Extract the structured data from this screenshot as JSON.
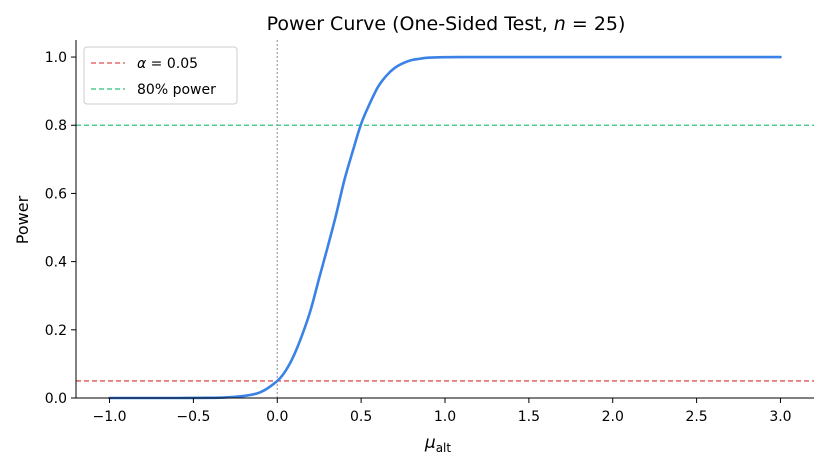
{
  "chart_data": {
    "type": "line",
    "title_prefix": "Power Curve (One-Sided Test, ",
    "title_var": "n",
    "title_suffix": " = 25)",
    "xlabel_main": "μ",
    "xlabel_sub": "alt",
    "ylabel": "Power",
    "xlim": [
      -1.2,
      3.2
    ],
    "ylim": [
      0.0,
      1.05
    ],
    "xticks": [
      -1.0,
      -0.5,
      0.0,
      0.5,
      1.0,
      1.5,
      2.0,
      2.5,
      3.0
    ],
    "xtick_labels": [
      "−1.0",
      "−0.5",
      "0.0",
      "0.5",
      "1.0",
      "1.5",
      "2.0",
      "2.5",
      "3.0"
    ],
    "yticks": [
      0.0,
      0.2,
      0.4,
      0.6,
      0.8,
      1.0
    ],
    "ytick_labels": [
      "0.0",
      "0.2",
      "0.4",
      "0.6",
      "0.8",
      "1.0"
    ],
    "grid": false,
    "legend_position": "top-left",
    "series": [
      {
        "color": "#3b82e6",
        "x": [
          -1.0,
          -0.8,
          -0.6,
          -0.4,
          -0.3,
          -0.2,
          -0.1,
          0.0,
          0.05,
          0.1,
          0.15,
          0.2,
          0.25,
          0.3,
          0.35,
          0.4,
          0.45,
          0.5,
          0.55,
          0.6,
          0.65,
          0.7,
          0.75,
          0.8,
          0.85,
          0.9,
          1.0,
          1.1,
          1.2,
          1.5,
          2.0,
          2.5,
          3.0
        ],
        "y": [
          0.0,
          0.0,
          0.0,
          0.0004,
          0.002,
          0.006,
          0.017,
          0.05,
          0.08,
          0.126,
          0.187,
          0.26,
          0.352,
          0.442,
          0.536,
          0.639,
          0.724,
          0.804,
          0.862,
          0.912,
          0.945,
          0.968,
          0.982,
          0.991,
          0.995,
          0.998,
          0.9996,
          1.0,
          1.0,
          1.0,
          1.0,
          1.0,
          1.0
        ]
      }
    ],
    "reference_lines": [
      {
        "orientation": "horizontal",
        "value": 0.05,
        "color": "#e05252",
        "style": "dashed",
        "legend_greek": "α",
        "legend_text": " = 0.05"
      },
      {
        "orientation": "horizontal",
        "value": 0.8,
        "color": "#2ec27e",
        "style": "dashed",
        "legend_greek": "",
        "legend_text": "80% power"
      },
      {
        "orientation": "vertical",
        "value": 0.0,
        "color": "#a0a0a0",
        "style": "dotted"
      }
    ]
  }
}
